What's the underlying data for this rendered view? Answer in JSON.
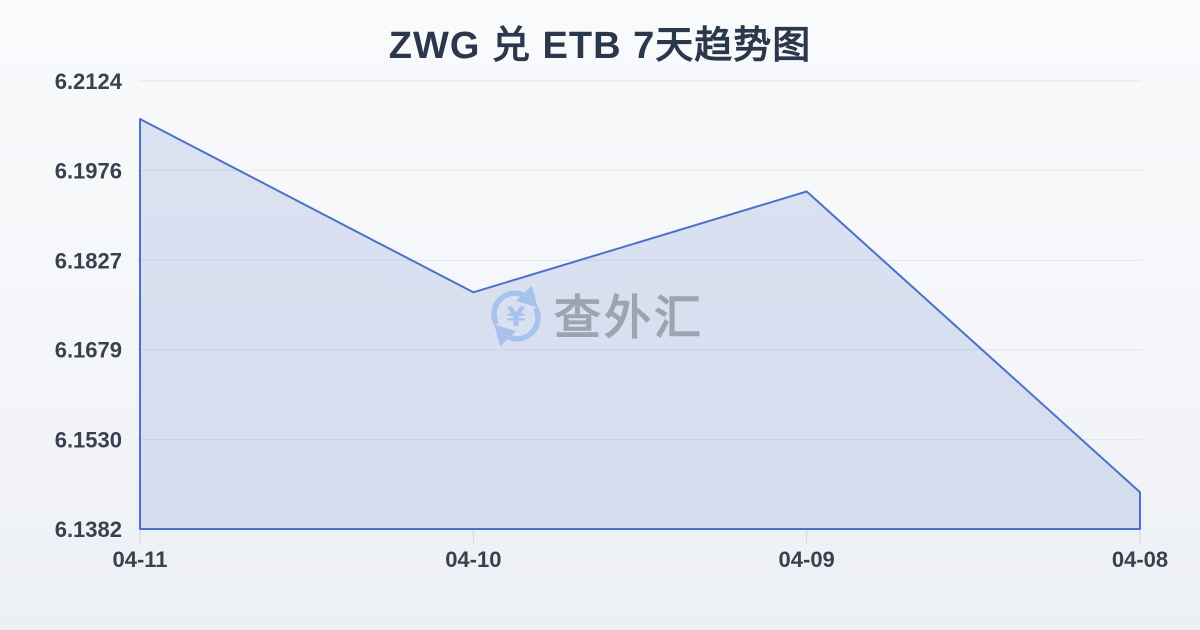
{
  "page": {
    "title": "ZWG 兑 ETB 7天趋势图",
    "watermark": {
      "text": "查外汇",
      "icon": "currency-exchange-refresh-icon",
      "yuan_symbol": "¥"
    }
  },
  "chart_data": {
    "type": "area",
    "title": "ZWG 兑 ETB 7天趋势图",
    "categories": [
      "04-11",
      "04-10",
      "04-09",
      "04-08"
    ],
    "values": [
      6.2061,
      6.1774,
      6.1941,
      6.1443
    ],
    "y_tick_labels": [
      "6.2124",
      "6.1976",
      "6.1827",
      "6.1679",
      "6.1530",
      "6.1382"
    ],
    "ylim": [
      6.1382,
      6.2124
    ],
    "xlabel": "",
    "ylabel": "",
    "grid": true,
    "legend_position": "none",
    "colors": {
      "line": "#4b72c8",
      "fill": "rgba(87,122,199,0.18)",
      "grid": "#e3e5ea",
      "axis_tick": "#d3d6dd",
      "label": "#39414f",
      "title": "#2b374b",
      "watermark_icon": "#a6c1ee",
      "watermark_text": "#9aa1ac"
    }
  }
}
